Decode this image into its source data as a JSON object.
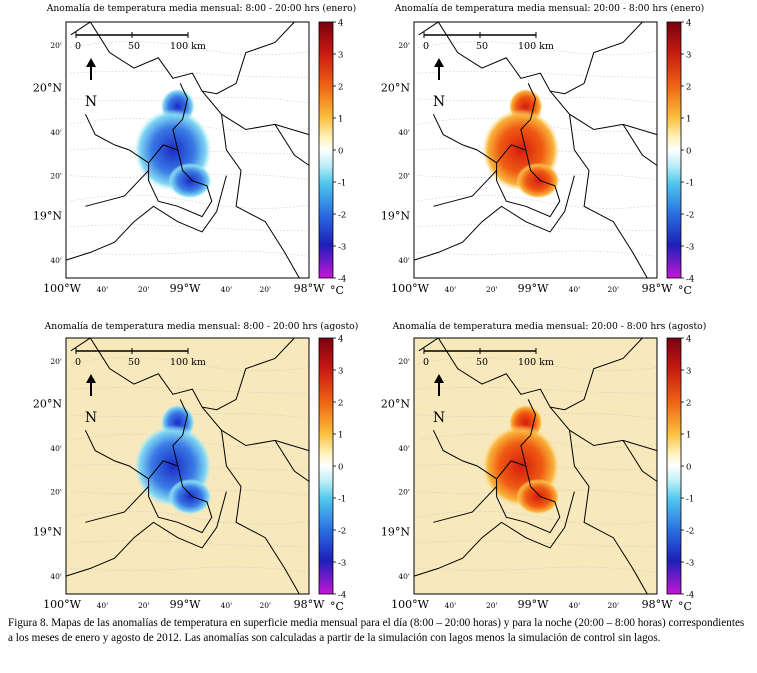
{
  "figure": {
    "panels": [
      {
        "id": "day-jan",
        "title": "Anomalía de temperatura media mensual: 8:00 - 20:00 hrs (enero)",
        "anomaly": "cool",
        "background": "white"
      },
      {
        "id": "night-jan",
        "title": "Anomalía de temperatura media mensual: 20:00 - 8:00 hrs (enero)",
        "anomaly": "warm",
        "background": "white"
      },
      {
        "id": "day-aug",
        "title": "Anomalía de temperatura media mensual: 8:00 - 20:00 hrs (agosto)",
        "anomaly": "cool",
        "background": "tan"
      },
      {
        "id": "night-aug",
        "title": "Anomalía de temperatura media mensual: 20:00 - 8:00 hrs (agosto)",
        "anomaly": "warm",
        "background": "tan"
      }
    ],
    "lat_labels": [
      "20'",
      "20°N",
      "40'",
      "20'",
      "19°N",
      "40'"
    ],
    "lon_labels": [
      "100°W",
      "40'",
      "20'",
      "99°W",
      "40'",
      "20'",
      "98°W"
    ],
    "scale_bar": {
      "ticks": [
        "0",
        "50",
        "100 km"
      ]
    },
    "north_label": "N",
    "colorbar": {
      "ticks": [
        "4",
        "3",
        "2",
        "1",
        "0",
        "-1",
        "-2",
        "-3",
        "-4"
      ],
      "unit": "°C"
    },
    "colors": {
      "tan": "#f8e9bd",
      "border": "#000000",
      "contour": "#c8c8c8"
    }
  },
  "caption": "Figura 8. Mapas de las anomalías de temperatura en superficie media mensual para el día (8:00 – 20:00 horas) y para la noche (20:00 – 8:00 horas) correspondientes a los meses de enero y agosto de 2012. Las anomalías son calculadas a partir de la simulación con lagos menos la simulación de control sin lagos."
}
